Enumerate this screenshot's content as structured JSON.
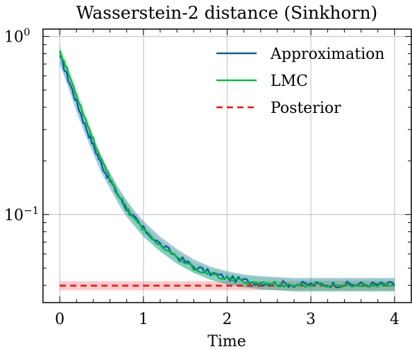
{
  "chart_data": {
    "type": "line",
    "title": "Wasserstein-2 distance (Sinkhorn)",
    "xlabel": "Time",
    "ylabel": "",
    "xlim": [
      -0.2,
      4.2
    ],
    "ylim": [
      0.032,
      1.1
    ],
    "yscale": "log",
    "grid": true,
    "legend_position": "top-right",
    "x_ticks": [
      0,
      1,
      2,
      3,
      4
    ],
    "x_tick_labels": [
      "0",
      "1",
      "2",
      "3",
      "4"
    ],
    "y_major_ticks": [
      0.1,
      1
    ],
    "y_tick_labels": [
      {
        "base": "10",
        "exp": "−1"
      },
      {
        "base": "10",
        "exp": "0"
      }
    ],
    "series": [
      {
        "name": "Approximation",
        "color": "#0c5da5",
        "style": "solid",
        "band_color": "#0c5da5",
        "x": [
          0,
          0.1,
          0.2,
          0.3,
          0.4,
          0.5,
          0.6,
          0.7,
          0.8,
          0.9,
          1.0,
          1.2,
          1.4,
          1.6,
          1.8,
          2.0,
          2.2,
          2.4,
          2.6,
          2.8,
          3.0,
          3.2,
          3.4,
          3.6,
          3.8,
          4.0
        ],
        "values": [
          0.78,
          0.58,
          0.43,
          0.32,
          0.245,
          0.19,
          0.155,
          0.128,
          0.108,
          0.094,
          0.083,
          0.068,
          0.058,
          0.051,
          0.047,
          0.044,
          0.0425,
          0.0415,
          0.041,
          0.0405,
          0.0405,
          0.0405,
          0.0405,
          0.0405,
          0.0405,
          0.0405
        ],
        "band_lower": [
          0.7,
          0.52,
          0.38,
          0.285,
          0.22,
          0.17,
          0.14,
          0.115,
          0.097,
          0.085,
          0.075,
          0.062,
          0.053,
          0.047,
          0.043,
          0.0405,
          0.039,
          0.038,
          0.0375,
          0.037,
          0.037,
          0.037,
          0.037,
          0.037,
          0.037,
          0.037
        ],
        "band_upper": [
          0.86,
          0.64,
          0.48,
          0.36,
          0.27,
          0.21,
          0.172,
          0.142,
          0.12,
          0.104,
          0.092,
          0.075,
          0.064,
          0.056,
          0.051,
          0.048,
          0.046,
          0.045,
          0.0445,
          0.044,
          0.044,
          0.044,
          0.044,
          0.044,
          0.044,
          0.044
        ]
      },
      {
        "name": "LMC",
        "color": "#00b945",
        "style": "solid",
        "band_color": "#4fd37f",
        "x": [
          0,
          0.1,
          0.2,
          0.3,
          0.4,
          0.5,
          0.6,
          0.7,
          0.8,
          0.9,
          1.0,
          1.2,
          1.4,
          1.6,
          1.8,
          2.0,
          2.2,
          2.4,
          2.6,
          2.8,
          3.0,
          3.2,
          3.4,
          3.6,
          3.8,
          4.0
        ],
        "values": [
          0.83,
          0.63,
          0.47,
          0.35,
          0.265,
          0.2,
          0.16,
          0.13,
          0.109,
          0.094,
          0.082,
          0.067,
          0.057,
          0.05,
          0.046,
          0.0435,
          0.0422,
          0.0412,
          0.0405,
          0.04,
          0.04,
          0.04,
          0.04,
          0.04,
          0.04,
          0.04
        ],
        "band_lower": [
          0.76,
          0.58,
          0.43,
          0.32,
          0.245,
          0.185,
          0.148,
          0.12,
          0.1,
          0.087,
          0.076,
          0.062,
          0.053,
          0.047,
          0.043,
          0.0405,
          0.039,
          0.038,
          0.0375,
          0.037,
          0.037,
          0.037,
          0.037,
          0.037,
          0.037,
          0.037
        ],
        "band_upper": [
          0.9,
          0.69,
          0.51,
          0.38,
          0.285,
          0.215,
          0.172,
          0.14,
          0.118,
          0.102,
          0.088,
          0.072,
          0.062,
          0.054,
          0.05,
          0.047,
          0.0455,
          0.0445,
          0.0438,
          0.0432,
          0.0432,
          0.0432,
          0.0432,
          0.0432,
          0.0432,
          0.0432
        ]
      },
      {
        "name": "Posterior",
        "color": "#ff0000",
        "style": "dashed",
        "band_color": "#ff6b6b",
        "x": [
          0,
          4
        ],
        "values": [
          0.0398,
          0.0398
        ],
        "band_lower": [
          0.0375,
          0.0375
        ],
        "band_upper": [
          0.0422,
          0.0422
        ]
      }
    ]
  }
}
